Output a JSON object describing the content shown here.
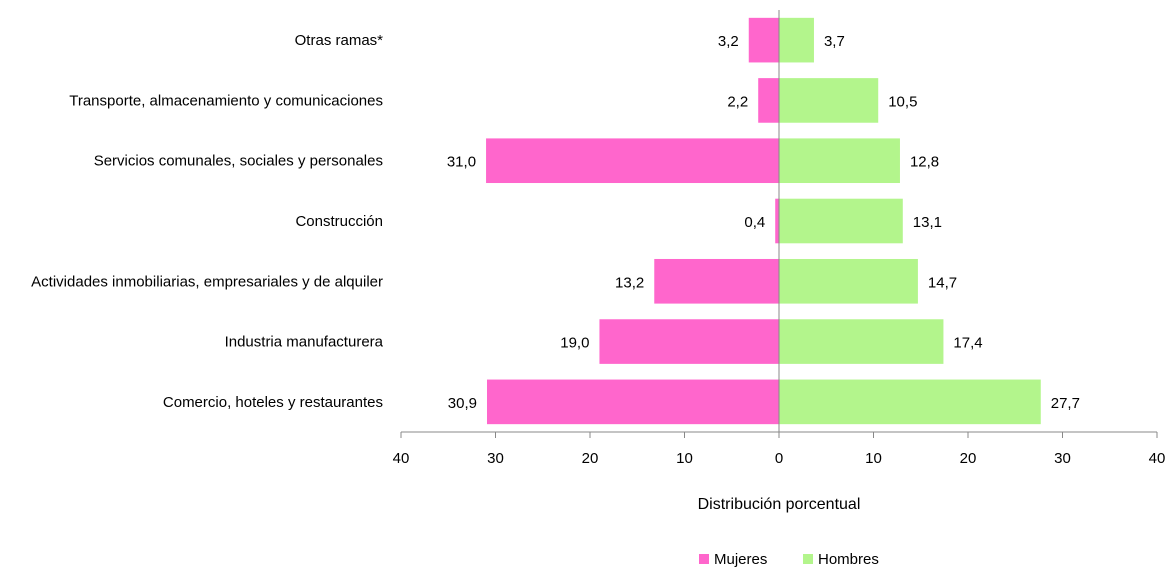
{
  "chart_data": {
    "type": "bar",
    "orientation": "horizontal",
    "categories": [
      "Otras ramas*",
      "Transporte, almacenamiento y comunicaciones",
      "Servicios comunales, sociales y personales",
      "Construcción",
      "Actividades inmobiliarias, empresariales y de alquiler",
      "Industria manufacturera",
      "Comercio, hoteles y restaurantes"
    ],
    "series": [
      {
        "name": "Mujeres",
        "color": "#ff66cc",
        "side": "left",
        "values": [
          3.2,
          2.2,
          31.0,
          0.4,
          13.2,
          19.0,
          30.9
        ],
        "labels": [
          "3,2",
          "2,2",
          "31,0",
          "0,4",
          "13,2",
          "19,0",
          "30,9"
        ]
      },
      {
        "name": "Hombres",
        "color": "#b3f58c",
        "side": "right",
        "values": [
          3.7,
          10.5,
          12.8,
          13.1,
          14.7,
          17.4,
          27.7
        ],
        "labels": [
          "3,7",
          "10,5",
          "12,8",
          "13,1",
          "14,7",
          "17,4",
          "27,7"
        ]
      }
    ],
    "xlabel": "Distribución porcentual",
    "xlim": [
      -40,
      40
    ],
    "xticks": [
      -40,
      -30,
      -20,
      -10,
      0,
      10,
      20,
      30,
      40
    ],
    "xtick_labels": [
      "40",
      "30",
      "20",
      "10",
      "0",
      "10",
      "20",
      "30",
      "40"
    ],
    "grid": false,
    "legend_position": "bottom"
  }
}
